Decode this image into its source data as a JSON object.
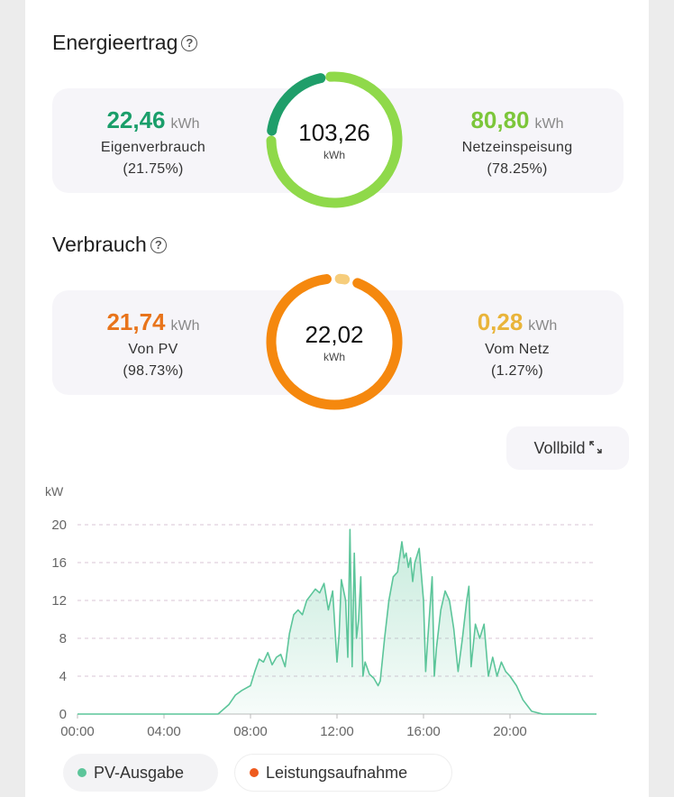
{
  "energy": {
    "title": "Energieertrag",
    "help_icon": "?",
    "total_value": "103,26",
    "total_unit": "kWh",
    "left": {
      "value": "22,46",
      "unit": "kWh",
      "label": "Eigenverbrauch",
      "percent": "(21.75%)",
      "color": "#1a9e6a"
    },
    "right": {
      "value": "80,80",
      "unit": "kWh",
      "label": "Netzeinspeisung",
      "percent": "(78.25%)",
      "color": "#7cc63a"
    },
    "ring_fraction_self": 0.2175
  },
  "consumption": {
    "title": "Verbrauch",
    "help_icon": "?",
    "total_value": "22,02",
    "total_unit": "kWh",
    "left": {
      "value": "21,74",
      "unit": "kWh",
      "label": "Von PV",
      "percent": "(98.73%)",
      "color": "#e8741b"
    },
    "right": {
      "value": "0,28",
      "unit": "kWh",
      "label": "Vom Netz",
      "percent": "(1.27%)",
      "color": "#e9b43a"
    },
    "ring_fraction_grid": 0.0127
  },
  "fullscreen_label": "Vollbild",
  "fullscreen_icon": "expand-icon",
  "legend": [
    {
      "label": "PV-Ausgabe",
      "color": "#5cc59a"
    },
    {
      "label": "Leistungsaufnahme",
      "color": "#ee5a1e"
    }
  ],
  "chart_data": {
    "type": "area",
    "ylabel": "kW",
    "ylim": [
      0,
      20
    ],
    "yticks": [
      "0",
      "4",
      "8",
      "12",
      "16",
      "20"
    ],
    "xticks": [
      "00:00",
      "04:00",
      "08:00",
      "12:00",
      "16:00",
      "20:00"
    ],
    "xlim_hours": [
      0,
      24
    ],
    "grid": true,
    "series": [
      {
        "name": "PV-Ausgabe",
        "color": "#5cc59a",
        "x": [
          0,
          6.5,
          7,
          7.3,
          7.6,
          8,
          8.2,
          8.4,
          8.6,
          8.8,
          9,
          9.2,
          9.4,
          9.6,
          9.8,
          10,
          10.2,
          10.4,
          10.6,
          10.8,
          11,
          11.2,
          11.4,
          11.6,
          11.8,
          12,
          12.1,
          12.2,
          12.4,
          12.5,
          12.6,
          12.7,
          12.8,
          12.9,
          13,
          13.1,
          13.2,
          13.3,
          13.5,
          13.7,
          13.9,
          14,
          14.2,
          14.4,
          14.6,
          14.8,
          15,
          15.1,
          15.2,
          15.3,
          15.4,
          15.5,
          15.6,
          15.8,
          16,
          16.1,
          16.2,
          16.4,
          16.5,
          16.6,
          16.8,
          17,
          17.2,
          17.4,
          17.6,
          17.8,
          18,
          18.1,
          18.2,
          18.4,
          18.6,
          18.8,
          19,
          19.2,
          19.4,
          19.6,
          19.8,
          20,
          20.3,
          20.6,
          21,
          21.5,
          24
        ],
        "y": [
          0,
          0,
          1.0,
          2.0,
          2.5,
          3.0,
          4.5,
          5.8,
          5.5,
          6.5,
          5.2,
          6.0,
          6.3,
          5.0,
          8.5,
          10.5,
          11.0,
          10.5,
          12.0,
          12.6,
          13.2,
          12.8,
          13.8,
          11.0,
          13.0,
          5.5,
          8.5,
          14.2,
          12.0,
          6.0,
          19.5,
          5.0,
          17.0,
          8.0,
          10.0,
          14.5,
          4.0,
          5.5,
          4.2,
          3.8,
          3.0,
          3.5,
          8.0,
          12.0,
          14.5,
          15.0,
          18.2,
          16.5,
          17.0,
          15.5,
          16.5,
          14.0,
          16.0,
          17.5,
          12.0,
          4.5,
          8.0,
          14.5,
          4.0,
          7.0,
          11.0,
          13.0,
          12.0,
          9.0,
          4.5,
          8.0,
          12.0,
          13.5,
          5.0,
          9.5,
          8.0,
          9.5,
          4.0,
          6.0,
          4.0,
          5.5,
          4.5,
          4.0,
          3.0,
          1.5,
          0.3,
          0,
          0
        ]
      }
    ]
  }
}
